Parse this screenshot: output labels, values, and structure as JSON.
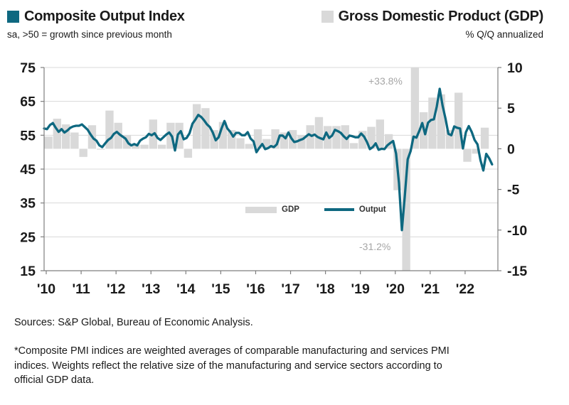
{
  "header": {
    "left": {
      "title": "Composite Output Index",
      "subtitle": "sa, >50 = growth since previous month",
      "swatch_color": "#0e6880"
    },
    "right": {
      "title": "Gross Domestic Product (GDP)",
      "subtitle": "% Q/Q annualized",
      "swatch_color": "#d9d9d9"
    }
  },
  "chart_data": {
    "type": "combo",
    "title": "US Composite Output Index vs Gross Domestic Product",
    "grid": true,
    "left_axis": {
      "ticks": [
        15,
        25,
        35,
        45,
        55,
        65,
        75
      ],
      "range": [
        15,
        75
      ],
      "series": "Output"
    },
    "right_axis": {
      "ticks": [
        -15,
        -10,
        -5,
        0,
        5,
        10
      ],
      "range": [
        -15,
        10
      ],
      "series": "GDP"
    },
    "x_axis": {
      "tick_labels": [
        "'10",
        "'11",
        "'12",
        "'13",
        "'14",
        "'15",
        "'16",
        "'17",
        "'18",
        "'19",
        "'20",
        "'21",
        "'22"
      ],
      "start": "2010-01",
      "end": "2022-11"
    },
    "legend": {
      "position": "inside-bottom-center",
      "items": [
        {
          "label": "GDP",
          "type": "bar",
          "color": "#d9d9d9"
        },
        {
          "label": "Output",
          "type": "line",
          "color": "#0e6880"
        }
      ]
    },
    "annotations": [
      {
        "text": "+33.8%",
        "refers_to": "2020-Q3 GDP bar clipped at top of axis"
      },
      {
        "text": "-31.2%",
        "refers_to": "2020-Q2 GDP bar clipped at bottom of axis"
      }
    ],
    "series": [
      {
        "name": "GDP",
        "type": "bar",
        "axis": "right",
        "color": "#d9d9d9",
        "frequency": "quarterly",
        "start": "2010-Q1",
        "values": [
          1.5,
          3.7,
          3.0,
          2.0,
          -1.0,
          2.9,
          -0.1,
          4.7,
          3.2,
          1.7,
          0.5,
          0.5,
          3.6,
          0.5,
          3.2,
          3.2,
          -1.1,
          5.5,
          5.0,
          2.3,
          3.3,
          2.3,
          1.3,
          0.6,
          2.4,
          1.2,
          2.4,
          2.0,
          2.3,
          1.7,
          2.9,
          3.9,
          2.8,
          2.8,
          2.9,
          0.7,
          2.2,
          2.7,
          3.6,
          1.8,
          -5.1,
          -31.2,
          33.8,
          4.5,
          6.3,
          6.7,
          2.3,
          6.9,
          -1.6,
          -0.6,
          2.6
        ]
      },
      {
        "name": "Output",
        "type": "line",
        "axis": "left",
        "color": "#0e6880",
        "frequency": "monthly",
        "start": "2010-01",
        "values": [
          57.0,
          56.8,
          58.0,
          58.6,
          57.2,
          56.0,
          56.8,
          55.8,
          56.4,
          57.2,
          57.6,
          57.8,
          57.8,
          58.2,
          57.4,
          56.6,
          55.2,
          54.0,
          53.4,
          52.0,
          51.5,
          52.6,
          53.6,
          54.2,
          55.4,
          56.0,
          55.2,
          54.6,
          54.0,
          52.6,
          52.0,
          52.4,
          52.0,
          53.4,
          54.0,
          54.4,
          55.4,
          55.0,
          55.6,
          54.2,
          53.6,
          54.4,
          55.2,
          55.8,
          54.6,
          50.5,
          55.2,
          56.2,
          53.8,
          54.2,
          55.6,
          58.4,
          59.6,
          61.0,
          60.4,
          59.4,
          58.2,
          57.4,
          55.8,
          53.5,
          54.4,
          57.0,
          59.2,
          57.0,
          56.0,
          54.6,
          55.7,
          55.7,
          55.0,
          55.0,
          55.9,
          54.0,
          53.2,
          50.0,
          51.3,
          52.4,
          50.9,
          51.2,
          51.8,
          51.5,
          52.3,
          54.9,
          54.9,
          54.1,
          55.8,
          54.1,
          53.0,
          53.2,
          53.6,
          53.9,
          54.6,
          55.3,
          54.8,
          55.2,
          54.5,
          54.1,
          53.8,
          55.8,
          54.2,
          54.9,
          56.6,
          56.2,
          55.7,
          54.7,
          53.9,
          54.9,
          54.7,
          54.4,
          54.4,
          55.5,
          54.6,
          53.0,
          50.9,
          51.5,
          52.6,
          50.7,
          51.0,
          50.9,
          52.0,
          52.7,
          53.3,
          49.6,
          40.9,
          27.0,
          37.0,
          47.9,
          50.3,
          54.6,
          54.3,
          56.3,
          58.6,
          55.3,
          58.7,
          59.5,
          59.7,
          63.5,
          68.7,
          63.7,
          59.9,
          55.4,
          55.0,
          57.6,
          57.2,
          57.0,
          51.1,
          55.9,
          57.7,
          56.0,
          53.6,
          52.3,
          47.7,
          44.6,
          49.5,
          48.2,
          46.4
        ]
      }
    ],
    "style": {
      "bar_color": "#d9d9d9",
      "line_color": "#0e6880",
      "grid_color": "#d9d9d9",
      "axis_color": "#7f7f7f",
      "tick_label_color": "#1a1a1a",
      "annotation_color": "#a6a6a6"
    }
  },
  "footer": {
    "sources": "Sources: S&P Global, Bureau of Economic Analysis.",
    "footnote": "*Composite PMI indices are weighted averages of comparable manufacturing and services PMI indices. Weights reflect the relative size of the manufacturing and service sectors according to official GDP data."
  }
}
